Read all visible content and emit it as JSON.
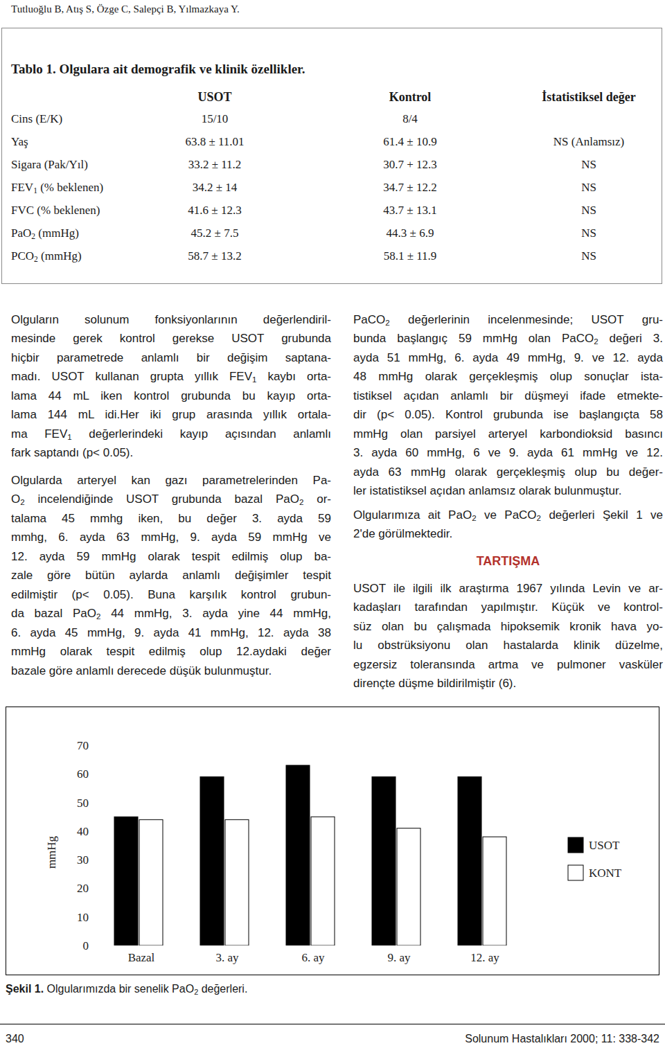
{
  "header": {
    "authors": "Tutluoğlu B, Atış S, Özge C, Salepçi B, Yılmazkaya Y."
  },
  "table": {
    "title": "Tablo 1. Olgulara ait demografik ve klinik özellikler.",
    "columns": [
      "USOT",
      "Kontrol",
      "İstatistiksel değer"
    ],
    "rows": [
      {
        "label": "Cins (E/K)",
        "cells": [
          "15/10",
          "8/4"
        ]
      },
      {
        "label": "Yaş",
        "cells": [
          "63.8 ± 11.01",
          "61.4 ± 10.9",
          "NS (Anlamsız)"
        ]
      },
      {
        "label": "Sigara (Pak/Yıl)",
        "cells": [
          "33.2 ± 11.2",
          "30.7 + 12.3",
          "NS"
        ]
      },
      {
        "label": [
          "FEV",
          {
            "sub": "1"
          },
          " (% beklenen)"
        ],
        "cells": [
          "34.2 ± 14",
          "34.7 ± 12.2",
          "NS"
        ]
      },
      {
        "label": "FVC (% beklenen)",
        "cells": [
          "41.6 ± 12.3",
          "43.7 ± 13.1",
          "NS"
        ]
      },
      {
        "label": [
          "PaO",
          {
            "sub": "2"
          },
          " (mmHg)"
        ],
        "cells": [
          "45.2 ± 7.5",
          "44.3 ± 6.9",
          "NS"
        ]
      },
      {
        "label": [
          "PCO",
          {
            "sub": "2"
          },
          " (mmHg)"
        ],
        "cells": [
          "58.7 ± 13.2",
          "58.1 ± 11.9",
          "NS"
        ]
      }
    ]
  },
  "left_column": [
    {
      "type": "paragraph",
      "lines": [
        "Olguların solunum fonksiyonlarının değerlendiril-",
        "mesinde gerek kontrol gerekse USOT grubunda",
        "hiçbir parametrede anlamlı bir değişim saptana-",
        [
          "madı. USOT kullanan grupta yıllık FEV",
          {
            "sub": "1"
          },
          " kaybı orta-"
        ],
        "lama 44 mL iken kontrol grubunda bu kayıp orta-",
        "lama 144 mL idi.Her iki grup arasında yıllık ortala-",
        [
          "ma FEV",
          {
            "sub": "1"
          },
          " değerlerindeki kayıp açısından anlamlı"
        ],
        "fark saptandı (p< 0.05)."
      ]
    },
    {
      "type": "paragraph",
      "lines": [
        "Olgularda arteryel kan gazı parametrelerinden Pa-",
        [
          "O",
          {
            "sub": "2"
          },
          " incelendiğinde USOT grubunda bazal PaO",
          {
            "sub": "2"
          },
          " or-"
        ],
        "talama 45 mmhg iken, bu değer 3. ayda 59",
        "mmhg, 6. ayda 63 mmHg, 9. ayda 59 mmHg ve",
        "12. ayda 59 mmHg olarak tespit edilmiş olup ba-",
        "zale göre bütün aylarda anlamlı değişimler tespit",
        "edilmiştir (p< 0.05). Buna karşılık kontrol grubun-",
        [
          "da bazal PaO",
          {
            "sub": "2"
          },
          " 44 mmHg, 3. ayda yine 44 mmHg,"
        ],
        "6. ayda 45 mmHg, 9. ayda 41 mmHg, 12. ayda 38",
        "mmHg olarak tespit edilmiş olup 12.aydaki değer",
        "bazale göre anlamlı derecede düşük bulunmuştur."
      ]
    }
  ],
  "right_column": [
    {
      "type": "paragraph",
      "lines": [
        [
          "PaCO",
          {
            "sub": "2"
          },
          " değerlerinin incelenmesinde; USOT gru-"
        ],
        [
          "bunda başlangıç 59 mmHg olan PaCO",
          {
            "sub": "2"
          },
          " değeri 3."
        ],
        "ayda 51 mmHg, 6. ayda 49 mmHg, 9. ve 12. ayda",
        "48 mmHg olarak gerçekleşmiş olup sonuçlar ista-",
        "tistiksel açıdan anlamlı bir düşmeyi ifade etmekte-",
        "dir (p< 0.05). Kontrol grubunda ise başlangıçta 58",
        "mmHg olan parsiyel arteryel karbondioksid basıncı",
        "3. ayda 60 mmHg, 6 ve 9. ayda 61 mmHg ve 12.",
        "ayda 63 mmHg olarak gerçekleşmiş olup bu değer-",
        "ler istatistiksel açıdan anlamsız olarak bulunmuştur."
      ]
    },
    {
      "type": "paragraph",
      "lines": [
        [
          "Olgularımıza ait PaO",
          {
            "sub": "2"
          },
          " ve PaCO",
          {
            "sub": "2"
          },
          " değerleri Şekil 1 ve"
        ],
        "2'de görülmektedir."
      ]
    },
    {
      "type": "heading",
      "text": "TARTIŞMA"
    },
    {
      "type": "paragraph",
      "lines": [
        "USOT ile ilgili ilk araştırma 1967 yılında Levin ve ar-",
        "kadaşları tarafından yapılmıştır. Küçük ve kontrol-",
        "süz olan bu çalışmada hipoksemik kronik hava yo-",
        "lu obstrüksiyonu olan hastalarda klinik düzelme,",
        "egzersiz toleransında artma ve pulmoner vasküler",
        "dirençte düşme bildirilmiştir (6)."
      ]
    }
  ],
  "chart_data": {
    "type": "bar",
    "y_label": "mmHg",
    "categories": [
      "Bazal",
      "3. ay",
      "6. ay",
      "9. ay",
      "12. ay"
    ],
    "series": [
      {
        "name": "USOT",
        "color": "#000000",
        "values": [
          45,
          59,
          63,
          59,
          59
        ]
      },
      {
        "name": "KONT",
        "color": "#ffffff",
        "values": [
          44,
          44,
          45,
          41,
          38
        ]
      }
    ],
    "ylim": [
      0,
      70
    ],
    "yticks": [
      0,
      10,
      20,
      30,
      40,
      50,
      60,
      70
    ],
    "legend": "right"
  },
  "figure_caption": [
    {
      "bold": "Şekil 1."
    },
    " Olgularımızda bir senelik PaO",
    {
      "sub": "2"
    },
    " değerleri."
  ],
  "footer": {
    "page": 340,
    "journal": "Solunum Hastalıkları 2000; 11: 338-342"
  }
}
